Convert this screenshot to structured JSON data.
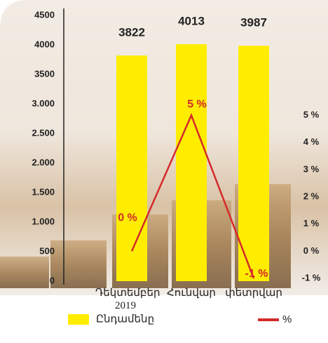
{
  "chart_data": {
    "type": "bar_line",
    "categories": [
      "Դեկտեմբեր 2019",
      "Հունվար",
      "փետրվար"
    ],
    "series": [
      {
        "name": "Ընդամենը",
        "color": "#ffed00",
        "values": [
          3822,
          4013,
          3987
        ]
      },
      {
        "name": "%",
        "color": "#d42a2a",
        "values": [
          0,
          5,
          -1
        ],
        "value_labels": [
          "0 %",
          "5 %",
          "-1 %"
        ],
        "axis": "y2"
      }
    ],
    "ylim": [
      0,
      4500
    ],
    "yticks": [
      0,
      500,
      {
        "value": 1000,
        "label": "1.000"
      },
      {
        "value": 1500,
        "label": "1.500"
      },
      {
        "value": 2000,
        "label": "2.000"
      },
      {
        "value": 2500,
        "label": "2.500"
      },
      {
        "value": 3000,
        "label": "3.000"
      },
      3500,
      4000,
      4500
    ],
    "y2lim": [
      -1,
      5
    ],
    "y2ticks": [
      {
        "value": -1,
        "label": "-1 %"
      },
      {
        "value": 0,
        "label": "0 %"
      },
      {
        "value": 1,
        "label": "1 %"
      },
      {
        "value": 2,
        "label": "2 %"
      },
      {
        "value": 3,
        "label": "3 %"
      },
      {
        "value": 4,
        "label": "4 %"
      },
      {
        "value": 5,
        "label": "5 %"
      }
    ]
  }
}
